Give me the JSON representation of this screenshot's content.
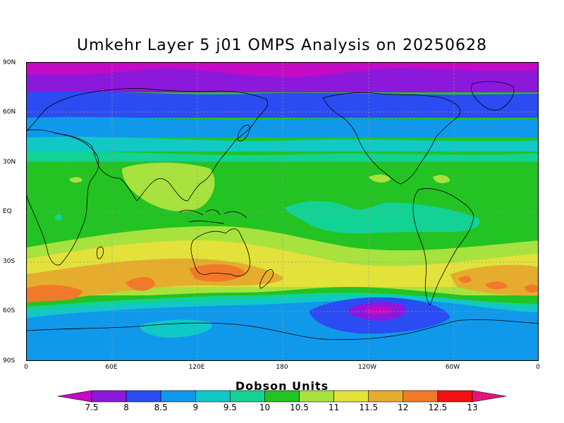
{
  "title": "Umkehr Layer 5 j01 OMPS Analysis on 20250628",
  "lat_labels": [
    "90N",
    "60N",
    "30N",
    "EQ",
    "30S",
    "60S",
    "90S"
  ],
  "lon_labels": [
    "0",
    "60E",
    "120E",
    "180",
    "120W",
    "60W",
    "0"
  ],
  "colorbar": {
    "title": "Dobson Units",
    "values": [
      "7.5",
      "8",
      "8.5",
      "9",
      "9.5",
      "10",
      "10.5",
      "11",
      "11.5",
      "12",
      "12.5",
      "13"
    ],
    "colors": [
      "#c40ac4",
      "#8c18dc",
      "#2a4cf2",
      "#1099ea",
      "#10c8c8",
      "#12d294",
      "#22c322",
      "#a8e23e",
      "#e2e23a",
      "#e6ac2e",
      "#f07a2a",
      "#f21010",
      "#e0167a"
    ]
  }
}
